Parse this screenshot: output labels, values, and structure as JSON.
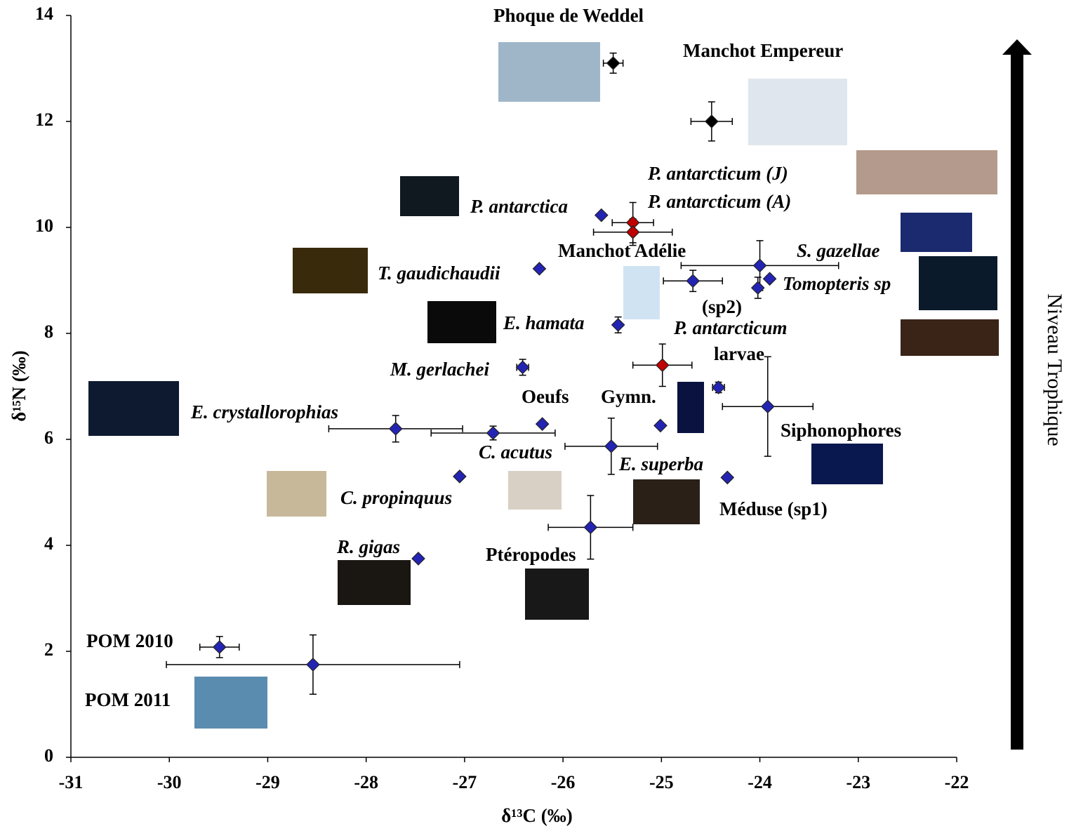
{
  "chart_data": {
    "type": "scatter",
    "xlabel": "δ¹³C (‰)",
    "ylabel": "δ¹⁵N (‰)",
    "xlim": [
      -31,
      -22
    ],
    "xticks": [
      -31,
      -30,
      -29,
      -28,
      -27,
      -26,
      -25,
      -24,
      -23,
      -22
    ],
    "ylim": [
      0,
      14
    ],
    "yticks": [
      0,
      2,
      4,
      6,
      8,
      10,
      12,
      14
    ],
    "side_label": "Niveau Trophique",
    "series": [
      {
        "color": "#000000",
        "x": [
          -25.49,
          -24.49
        ],
        "y": [
          13.1,
          12.0
        ],
        "xerr": [
          0.1,
          0.21
        ],
        "yerr": [
          0.19,
          0.37
        ]
      },
      {
        "color": "#c00000",
        "x": [
          -25.29,
          -25.29,
          -24.99
        ],
        "y": [
          10.09,
          9.91,
          7.4
        ],
        "xerr": [
          0.21,
          0.4,
          0.3
        ],
        "yerr": [
          0.38,
          0.25,
          0.4
        ]
      },
      {
        "color": "#2424b4",
        "x": [
          -25.61,
          -26.24,
          -24.68,
          -24.0,
          -23.9,
          -24.02,
          -25.44,
          -26.41,
          -24.42,
          -25.01,
          -23.92,
          -26.21,
          -27.7,
          -26.71,
          -25.51,
          -27.05,
          -24.33,
          -25.72,
          -27.47,
          -29.49,
          -28.54
        ],
        "y": [
          10.23,
          9.22,
          8.99,
          9.28,
          9.03,
          8.86,
          8.16,
          7.36,
          6.98,
          6.26,
          6.62,
          6.29,
          6.2,
          6.12,
          5.87,
          5.3,
          5.28,
          4.34,
          3.75,
          2.08,
          1.75
        ],
        "xerr": [
          null,
          null,
          0.3,
          0.8,
          null,
          null,
          null,
          0.06,
          0.06,
          null,
          0.46,
          null,
          0.68,
          0.63,
          0.47,
          null,
          null,
          0.43,
          null,
          0.2,
          1.49
        ],
        "yerr": [
          null,
          null,
          0.2,
          0.47,
          null,
          0.2,
          0.15,
          0.15,
          0.1,
          null,
          0.94,
          null,
          0.25,
          0.13,
          0.53,
          null,
          null,
          0.6,
          null,
          0.2,
          0.56
        ]
      }
    ],
    "annotations": [
      "Phoque de Weddel",
      "Manchot Empereur",
      "P. antarcticum (J)",
      "P. antarcticum (A)",
      "P. antarctica",
      "Manchot Adélie",
      "S. gazellae",
      "Tomopteris sp",
      "T. gaudichaudii",
      "(sp2)",
      "E. hamata",
      "P. antarcticum",
      "larvae",
      "M. gerlachei",
      "Oeufs",
      "Gymn.",
      "E. crystallorophias",
      "Siphonophores",
      "C. acutus",
      "E. superba",
      "C. propinquus",
      "Méduse (sp1)",
      "R. gigas",
      "Ptéropodes",
      "POM 2010",
      "POM 2011"
    ]
  }
}
